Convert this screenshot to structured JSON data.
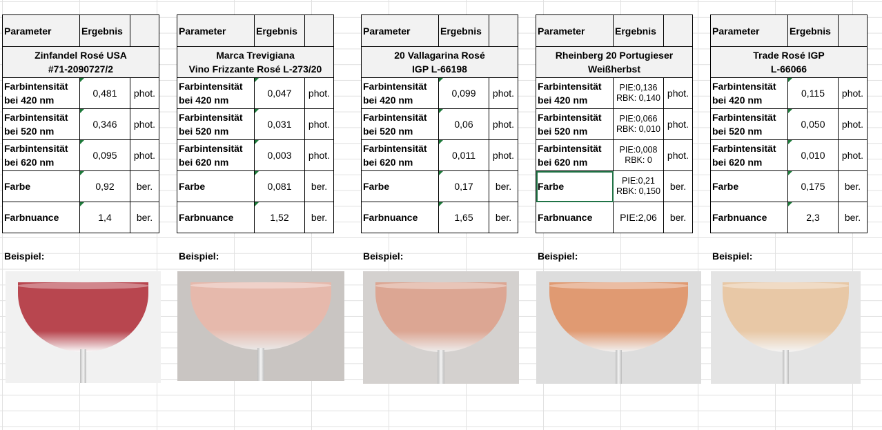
{
  "headers": {
    "parameter": "Parameter",
    "ergebnis": "Ergebnis"
  },
  "example_label": "Beispiel:",
  "wines": [
    {
      "title_line1": "Zinfandel Rosé USA",
      "title_line2": "#71-2090727/2",
      "rows": [
        {
          "param_line1": "Farbintensität",
          "param_line2": "bei 420 nm",
          "value": "0,481",
          "unit": "phot."
        },
        {
          "param_line1": "Farbintensität",
          "param_line2": "bei 520 nm",
          "value": "0,346",
          "unit": "phot."
        },
        {
          "param_line1": "Farbintensität",
          "param_line2": "bei 620 nm",
          "value": "0,095",
          "unit": "phot."
        },
        {
          "param_line1": "Farbe",
          "param_line2": "",
          "value": "0,92",
          "unit": "ber."
        },
        {
          "param_line1": "Farbnuance",
          "param_line2": "",
          "value": "1,4",
          "unit": "ber."
        }
      ],
      "wine_color": "#b8464f",
      "bg_color": "#f1f1f1"
    },
    {
      "title_line1": "Marca Trevigiana",
      "title_line2": "Vino Frizzante Rosé L-273/20",
      "rows": [
        {
          "param_line1": "Farbintensität",
          "param_line2": "bei 420 nm",
          "value": "0,047",
          "unit": "phot."
        },
        {
          "param_line1": "Farbintensität",
          "param_line2": "bei 520 nm",
          "value": "0,031",
          "unit": "phot."
        },
        {
          "param_line1": "Farbintensität",
          "param_line2": "bei 620 nm",
          "value": "0,003",
          "unit": "phot."
        },
        {
          "param_line1": "Farbe",
          "param_line2": "",
          "value": "0,081",
          "unit": "ber."
        },
        {
          "param_line1": "Farbnuance",
          "param_line2": "",
          "value": "1,52",
          "unit": "ber."
        }
      ],
      "wine_color": "#e6b9ac",
      "bg_color": "#c9c5c2"
    },
    {
      "title_line1": "20 Vallagarina Rosé",
      "title_line2": "IGP L-66198",
      "rows": [
        {
          "param_line1": "Farbintensität",
          "param_line2": "bei 420 nm",
          "value": "0,099",
          "unit": "phot."
        },
        {
          "param_line1": "Farbintensität",
          "param_line2": "bei 520 nm",
          "value": "0,06",
          "unit": "phot."
        },
        {
          "param_line1": "Farbintensität",
          "param_line2": "bei 620 nm",
          "value": "0,011",
          "unit": "phot."
        },
        {
          "param_line1": "Farbe",
          "param_line2": "",
          "value": "0,17",
          "unit": "ber."
        },
        {
          "param_line1": "Farbnuance",
          "param_line2": "",
          "value": "1,65",
          "unit": "ber."
        }
      ],
      "wine_color": "#dca693",
      "bg_color": "#d4d1cf"
    },
    {
      "title_line1": "Rheinberg 20 Portugieser",
      "title_line2": "Weißherbst",
      "rows": [
        {
          "param_line1": "Farbintensität",
          "param_line2": "bei 420 nm",
          "value_line1": "PIE:0,136",
          "value_line2": "RBK: 0,140",
          "unit": "phot."
        },
        {
          "param_line1": "Farbintensität",
          "param_line2": "bei 520 nm",
          "value_line1": "PIE:0,066",
          "value_line2": "RBK: 0,010",
          "unit": "phot."
        },
        {
          "param_line1": "Farbintensität",
          "param_line2": "bei 620 nm",
          "value_line1": "PIE:0,008",
          "value_line2": "RBK: 0",
          "unit": "phot."
        },
        {
          "param_line1": "Farbe",
          "param_line2": "",
          "value_line1": "PIE:0,21",
          "value_line2": "RBK: 0,150",
          "unit": "ber."
        },
        {
          "param_line1": "Farbnuance",
          "param_line2": "",
          "value_line1": "PIE:2,06",
          "value_line2": "",
          "unit": "ber."
        }
      ],
      "wine_color": "#e09a72",
      "bg_color": "#dddddd"
    },
    {
      "title_line1": "Trade Rosé IGP",
      "title_line2": "L-66066",
      "rows": [
        {
          "param_line1": "Farbintensität",
          "param_line2": "bei 420 nm",
          "value": "0,115",
          "unit": "phot."
        },
        {
          "param_line1": "Farbintensität",
          "param_line2": "bei 520 nm",
          "value": "0,050",
          "unit": "phot."
        },
        {
          "param_line1": "Farbintensität",
          "param_line2": "bei 620 nm",
          "value": "0,010",
          "unit": "phot."
        },
        {
          "param_line1": "Farbe",
          "param_line2": "",
          "value": "0,175",
          "unit": "ber."
        },
        {
          "param_line1": "Farbnuance",
          "param_line2": "",
          "value": "2,3",
          "unit": "ber."
        }
      ],
      "wine_color": "#e8c8a6",
      "bg_color": "#e4e4e4"
    }
  ]
}
